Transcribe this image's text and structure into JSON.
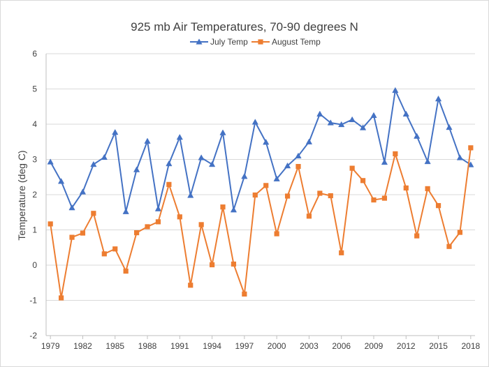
{
  "chart_data": {
    "type": "line",
    "title": "925 mb Air Temperatures, 70-90 degrees N",
    "xlabel": "",
    "ylabel": "Temperature (deg C)",
    "ylim": [
      -2,
      6
    ],
    "yticks": [
      -2,
      -1,
      0,
      1,
      2,
      3,
      4,
      5,
      6
    ],
    "xlim": [
      1979,
      2018
    ],
    "xticks": [
      1979,
      1982,
      1985,
      1988,
      1991,
      1994,
      1997,
      2000,
      2003,
      2006,
      2009,
      2012,
      2015,
      2018
    ],
    "grid": "horizontal",
    "legend_position": "top",
    "x": [
      1979,
      1980,
      1981,
      1982,
      1983,
      1984,
      1985,
      1986,
      1987,
      1988,
      1989,
      1990,
      1991,
      1992,
      1993,
      1994,
      1995,
      1996,
      1997,
      1998,
      1999,
      2000,
      2001,
      2002,
      2003,
      2004,
      2005,
      2006,
      2007,
      2008,
      2009,
      2010,
      2011,
      2012,
      2013,
      2014,
      2015,
      2016,
      2017,
      2018
    ],
    "series": [
      {
        "name": "July Temp",
        "color": "#4472C4",
        "marker": "triangle",
        "values": [
          2.93,
          2.38,
          1.63,
          2.08,
          2.86,
          3.06,
          3.77,
          1.52,
          2.71,
          3.52,
          1.6,
          2.88,
          3.63,
          1.98,
          3.05,
          2.86,
          3.76,
          1.57,
          2.52,
          4.06,
          3.49,
          2.45,
          2.82,
          3.1,
          3.5,
          4.29,
          4.04,
          3.99,
          4.13,
          3.9,
          4.25,
          2.92,
          4.96,
          4.29,
          3.66,
          2.94,
          4.72,
          3.91,
          3.05,
          2.85
        ]
      },
      {
        "name": "August Temp",
        "color": "#ED7D31",
        "marker": "square",
        "values": [
          1.17,
          -0.93,
          0.79,
          0.91,
          1.47,
          0.32,
          0.46,
          -0.17,
          0.92,
          1.09,
          1.23,
          2.29,
          1.37,
          -0.57,
          1.15,
          0.01,
          1.65,
          0.03,
          -0.82,
          1.99,
          2.26,
          0.89,
          1.96,
          2.8,
          1.39,
          2.04,
          1.97,
          0.35,
          2.75,
          2.4,
          1.85,
          1.9,
          3.16,
          2.19,
          0.83,
          2.17,
          1.69,
          0.53,
          0.93,
          3.33
        ]
      }
    ]
  }
}
